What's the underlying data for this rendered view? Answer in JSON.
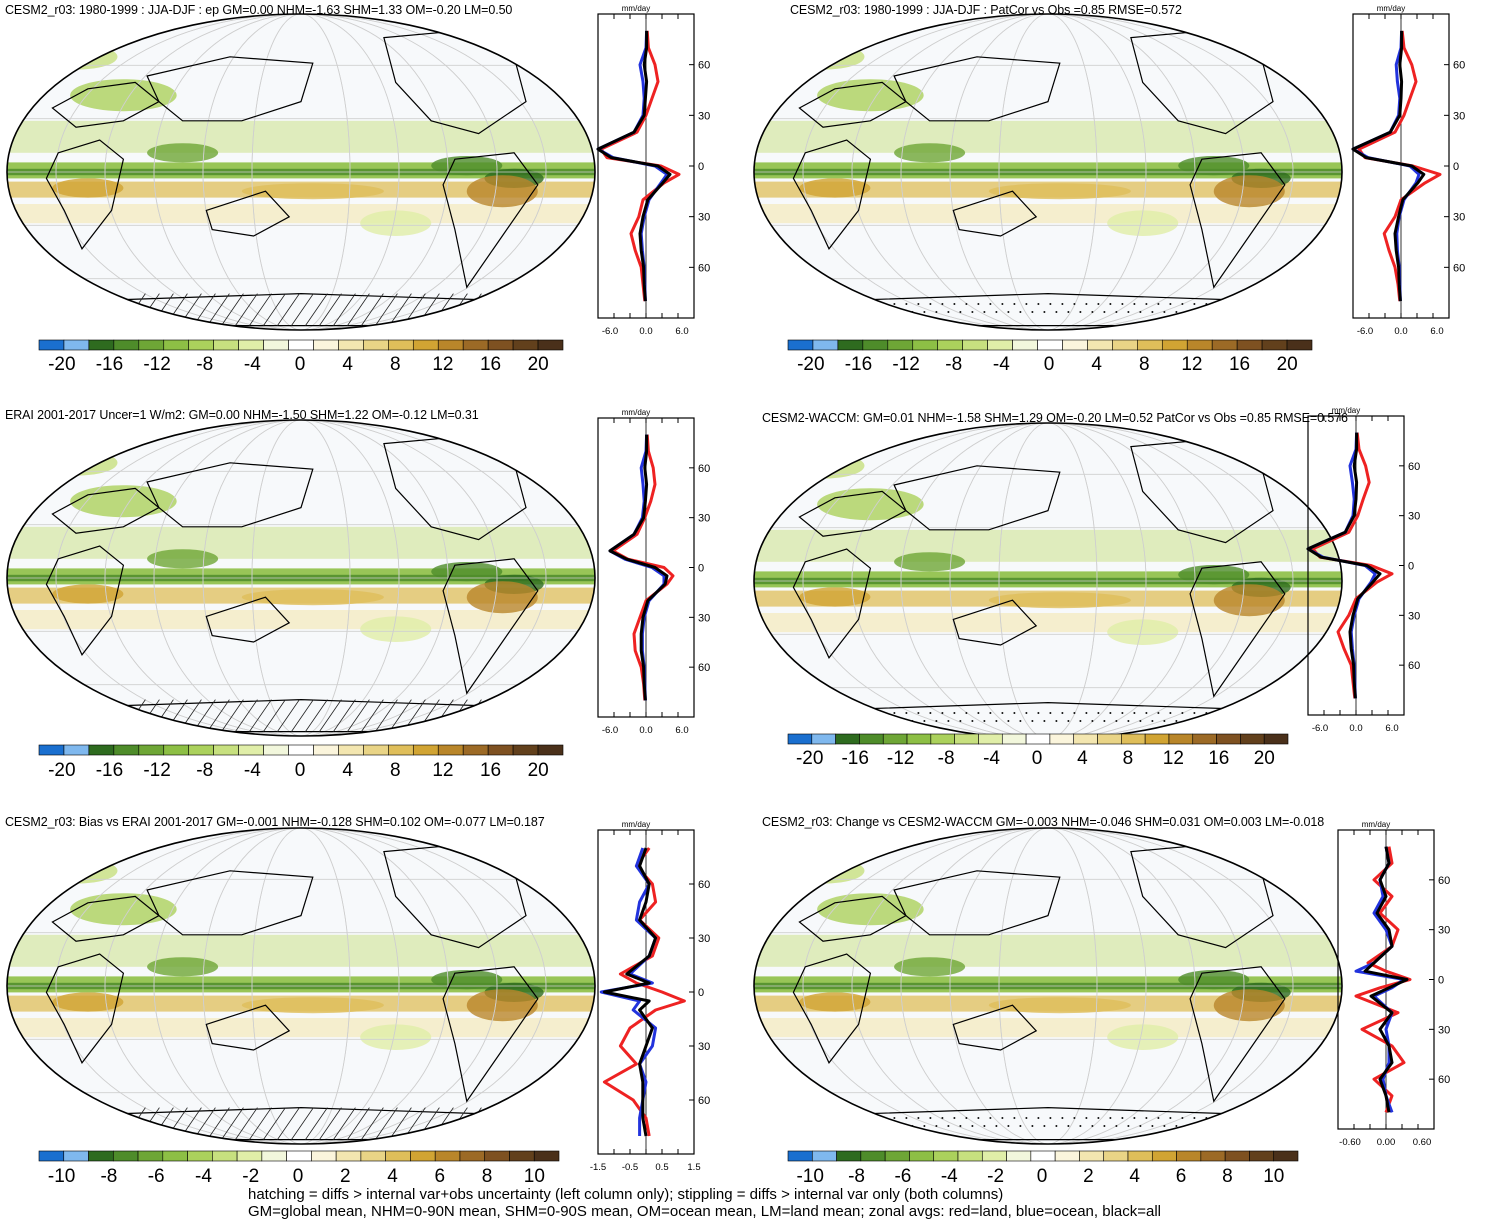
{
  "chart_data": [
    {
      "type": "heatmap",
      "title": "CESM2_r03: 1980-1999 : JJA-DJF : ep GM=0.00 NHM=-1.63 SHM=1.33 OM=-0.20 LM=0.50",
      "colorbar_ticks": [
        "-20",
        "-16",
        "-12",
        "-8",
        "-4",
        "0",
        "4",
        "8",
        "12",
        "16",
        "20"
      ],
      "zonal_unit": "mm/day",
      "zonal_xticks": [
        "-6.0",
        "0.0",
        "6.0"
      ],
      "zonal_xlim": [
        -8,
        8
      ],
      "lat_ticks": [
        "60N",
        "30N",
        "0",
        "30S",
        "60S"
      ],
      "hatching": "hatch",
      "zonal": {
        "x_lat": [
          80,
          70,
          60,
          50,
          40,
          30,
          20,
          10,
          5,
          0,
          -5,
          -10,
          -20,
          -30,
          -40,
          -50,
          -60,
          -70,
          -80
        ],
        "land": [
          0.2,
          0.4,
          1.5,
          2.0,
          1.0,
          0.0,
          -1.5,
          -7.5,
          -6.5,
          2.5,
          5.5,
          3.0,
          -0.5,
          -1.2,
          -2.5,
          -1.8,
          -0.8,
          -0.5,
          -0.2
        ],
        "ocean": [
          0.1,
          0.0,
          -1.0,
          -0.5,
          -0.3,
          -0.5,
          -2.0,
          -8.0,
          -5.5,
          1.5,
          3.5,
          2.5,
          0.5,
          -0.3,
          -0.8,
          -0.6,
          -0.3,
          -0.2,
          -0.1
        ],
        "all": [
          0.1,
          0.1,
          -0.3,
          0.1,
          -0.1,
          -0.3,
          -2.0,
          -8.0,
          -5.8,
          2.0,
          4.0,
          2.8,
          0.3,
          -0.5,
          -1.0,
          -0.8,
          -0.4,
          -0.3,
          -0.1
        ]
      }
    },
    {
      "type": "heatmap",
      "title": "CESM2_r03: 1980-1999 : JJA-DJF : PatCor vs Obs =0.85 RMSE=0.572",
      "colorbar_ticks": [
        "-20",
        "-16",
        "-12",
        "-8",
        "-4",
        "0",
        "4",
        "8",
        "12",
        "16",
        "20"
      ],
      "zonal_unit": "mm/day",
      "zonal_xticks": [
        "-6.0",
        "0.0",
        "6.0"
      ],
      "zonal_xlim": [
        -8,
        8
      ],
      "lat_ticks": [
        "60N",
        "30N",
        "0",
        "30S",
        "60S"
      ],
      "hatching": "stipple",
      "zonal": {
        "x_lat": [
          80,
          70,
          60,
          50,
          40,
          30,
          20,
          10,
          5,
          0,
          -5,
          -10,
          -20,
          -30,
          -40,
          -50,
          -60,
          -70,
          -80
        ],
        "land": [
          0.2,
          0.5,
          1.8,
          2.5,
          1.5,
          0.5,
          -1.0,
          -7.0,
          -6.0,
          2.0,
          6.5,
          4.0,
          0.0,
          -1.0,
          -2.8,
          -2.0,
          -1.0,
          -0.5,
          -0.2
        ],
        "ocean": [
          0.1,
          0.0,
          -0.8,
          -0.6,
          -0.2,
          -0.4,
          -1.8,
          -8.0,
          -5.5,
          1.5,
          3.0,
          2.5,
          0.5,
          -0.3,
          -0.7,
          -0.6,
          -0.3,
          -0.2,
          -0.1
        ],
        "all": [
          0.1,
          0.1,
          -0.2,
          0.1,
          0.0,
          -0.2,
          -1.8,
          -8.0,
          -5.8,
          1.8,
          3.8,
          2.8,
          0.3,
          -0.4,
          -1.0,
          -0.8,
          -0.4,
          -0.3,
          -0.1
        ]
      }
    },
    {
      "type": "heatmap",
      "title": "ERAI 2001-2017 Uncer=1 W/m2: GM=0.00 NHM=-1.50 SHM=1.22 OM=-0.12 LM=0.31",
      "colorbar_ticks": [
        "-20",
        "-16",
        "-12",
        "-8",
        "-4",
        "0",
        "4",
        "8",
        "12",
        "16",
        "20"
      ],
      "zonal_unit": "mm/day",
      "zonal_xticks": [
        "-6.0",
        "0.0",
        "6.0"
      ],
      "zonal_xlim": [
        -8,
        8
      ],
      "lat_ticks": [
        "60N",
        "30N",
        "0",
        "30S",
        "60S"
      ],
      "hatching": "hatch",
      "zonal": {
        "x_lat": [
          80,
          70,
          60,
          50,
          40,
          30,
          20,
          10,
          5,
          0,
          -5,
          -10,
          -20,
          -30,
          -40,
          -50,
          -60,
          -70,
          -80
        ],
        "land": [
          0.2,
          0.4,
          1.2,
          1.5,
          0.8,
          -0.2,
          -1.5,
          -5.5,
          -3.0,
          3.0,
          4.5,
          3.5,
          0.0,
          -1.0,
          -2.0,
          -1.8,
          -0.8,
          -0.4,
          -0.2
        ],
        "ocean": [
          0.1,
          0.0,
          -0.8,
          -0.5,
          -0.3,
          -0.6,
          -2.0,
          -6.0,
          -3.5,
          1.0,
          3.0,
          3.0,
          0.5,
          -0.3,
          -0.6,
          -0.6,
          -0.3,
          -0.2,
          -0.1
        ],
        "all": [
          0.1,
          0.1,
          -0.2,
          0.1,
          -0.1,
          -0.4,
          -2.0,
          -6.0,
          -3.2,
          1.5,
          3.5,
          3.2,
          0.3,
          -0.5,
          -0.8,
          -0.8,
          -0.4,
          -0.3,
          -0.1
        ]
      }
    },
    {
      "type": "heatmap",
      "title": "CESM2-WACCM: GM=0.01 NHM=-1.58 SHM=1.29 OM=-0.20 LM=0.52 PatCor vs Obs =0.85 RMSE=0.576",
      "colorbar_ticks": [
        "-20",
        "-16",
        "-12",
        "-8",
        "-4",
        "0",
        "4",
        "8",
        "12",
        "16",
        "20"
      ],
      "zonal_unit": "mm/day",
      "zonal_xticks": [
        "-6.0",
        "0.0",
        "6.0"
      ],
      "zonal_xlim": [
        -8,
        8
      ],
      "lat_ticks": [
        "60N",
        "30N",
        "0",
        "30S",
        "60S"
      ],
      "hatching": "stipple",
      "zonal": {
        "x_lat": [
          80,
          70,
          60,
          50,
          40,
          30,
          20,
          10,
          5,
          0,
          -5,
          -10,
          -20,
          -30,
          -40,
          -50,
          -60,
          -70,
          -80
        ],
        "land": [
          0.2,
          0.5,
          1.6,
          2.2,
          1.2,
          0.3,
          -1.2,
          -7.2,
          -6.0,
          2.5,
          6.0,
          3.5,
          0.0,
          -1.2,
          -3.0,
          -2.0,
          -0.8,
          -0.5,
          -0.2
        ],
        "ocean": [
          0.1,
          0.0,
          -1.0,
          -0.6,
          -0.3,
          -0.5,
          -1.8,
          -8.0,
          -5.5,
          1.5,
          3.2,
          2.5,
          0.5,
          -0.3,
          -0.8,
          -0.6,
          -0.3,
          -0.2,
          -0.1
        ],
        "all": [
          0.1,
          0.1,
          -0.3,
          0.1,
          0.0,
          -0.3,
          -1.8,
          -8.0,
          -5.8,
          1.8,
          4.0,
          2.8,
          0.3,
          -0.5,
          -1.0,
          -0.8,
          -0.4,
          -0.3,
          -0.1
        ]
      }
    },
    {
      "type": "heatmap",
      "title": "CESM2_r03: Bias vs ERAI 2001-2017 GM=-0.001 NHM=-0.128 SHM=0.102 OM=-0.077 LM=0.187",
      "colorbar_ticks": [
        "-10",
        "-8",
        "-6",
        "-4",
        "-2",
        "0",
        "2",
        "4",
        "6",
        "8",
        "10"
      ],
      "zonal_unit": "mm/day",
      "zonal_xticks": [
        "-1.5",
        "-0.5",
        "0.5",
        "1.5"
      ],
      "zonal_xlim": [
        -1.5,
        1.5
      ],
      "lat_ticks": [
        "60N",
        "30N",
        "0",
        "30S",
        "60S"
      ],
      "hatching": "hatch",
      "zonal": {
        "x_lat": [
          80,
          70,
          60,
          50,
          40,
          30,
          20,
          10,
          5,
          0,
          -5,
          -10,
          -20,
          -30,
          -40,
          -50,
          -60,
          -70,
          -80
        ],
        "land": [
          0.1,
          -0.3,
          0.2,
          0.3,
          -0.2,
          0.4,
          0.2,
          -0.8,
          -0.3,
          0.5,
          1.2,
          0.3,
          -0.5,
          -0.8,
          -0.3,
          -1.3,
          -0.4,
          0.0,
          0.1
        ],
        "ocean": [
          -0.1,
          -0.3,
          0.1,
          -0.2,
          -0.3,
          0.3,
          0.1,
          -0.5,
          0.2,
          -1.4,
          -0.2,
          -0.4,
          0.3,
          0.2,
          -0.2,
          0.0,
          -0.1,
          -0.2,
          -0.2
        ],
        "all": [
          0.0,
          -0.2,
          0.1,
          0.0,
          -0.2,
          0.3,
          0.1,
          -0.6,
          0.1,
          -1.3,
          0.1,
          -0.2,
          0.2,
          0.0,
          -0.2,
          -0.1,
          -0.1,
          -0.1,
          0.0
        ]
      }
    },
    {
      "type": "heatmap",
      "title": "CESM2_r03: Change vs CESM2-WACCM GM=-0.003 NHM=-0.046 SHM=0.031 OM=0.003 LM=-0.018",
      "colorbar_ticks": [
        "-10",
        "-8",
        "-6",
        "-4",
        "-2",
        "0",
        "2",
        "4",
        "6",
        "8",
        "10"
      ],
      "zonal_unit": "mm/day",
      "zonal_xticks": [
        "-0.60",
        "0.00",
        "0.60"
      ],
      "zonal_xlim": [
        -0.8,
        0.8
      ],
      "lat_ticks": [
        "60N",
        "30N",
        "0",
        "30S",
        "60S"
      ],
      "hatching": "stipple",
      "zonal": {
        "x_lat": [
          80,
          70,
          60,
          50,
          40,
          30,
          20,
          10,
          5,
          0,
          -5,
          -10,
          -20,
          -30,
          -40,
          -50,
          -60,
          -70,
          -80
        ],
        "land": [
          0.05,
          0.1,
          -0.2,
          0.1,
          -0.1,
          0.2,
          0.1,
          -0.3,
          0.0,
          0.4,
          -0.1,
          -0.5,
          0.2,
          -0.4,
          0.1,
          0.3,
          -0.2,
          0.1,
          0.0
        ],
        "ocean": [
          0.0,
          0.05,
          -0.1,
          -0.05,
          -0.2,
          0.0,
          0.1,
          -0.2,
          -0.5,
          0.3,
          0.1,
          -0.2,
          0.1,
          0.0,
          0.05,
          0.05,
          -0.05,
          0.0,
          0.1
        ],
        "all": [
          0.0,
          0.05,
          -0.1,
          0.0,
          -0.15,
          0.05,
          0.1,
          -0.2,
          -0.35,
          0.35,
          0.05,
          -0.25,
          0.1,
          -0.1,
          0.05,
          0.1,
          -0.1,
          0.0,
          0.05
        ]
      }
    }
  ],
  "footnote": {
    "line1": "hatching = diffs > internal var+obs uncertainty (left column only); stippling = diffs > internal var only (both columns)",
    "line2": "GM=global mean, NHM=0-90N mean, SHM=0-90S mean, OM=ocean mean, LM=land mean; zonal avgs: red=land, blue=ocean, black=all"
  },
  "colors": {
    "land": "#ee2222",
    "ocean": "#2233dd",
    "all": "#000000",
    "palette": [
      "#1a6fcf",
      "#7fb8ee",
      "#2e6b1f",
      "#4e8c2a",
      "#6ea636",
      "#8dbf45",
      "#abd15c",
      "#c7e07f",
      "#e0eea8",
      "#f2f7dc",
      "#ffffff",
      "#fbf5dc",
      "#f3e6b0",
      "#e9d486",
      "#dfbe5a",
      "#d1a433",
      "#b9862a",
      "#9c6a26",
      "#7e5121",
      "#62401c",
      "#4a301a"
    ]
  }
}
